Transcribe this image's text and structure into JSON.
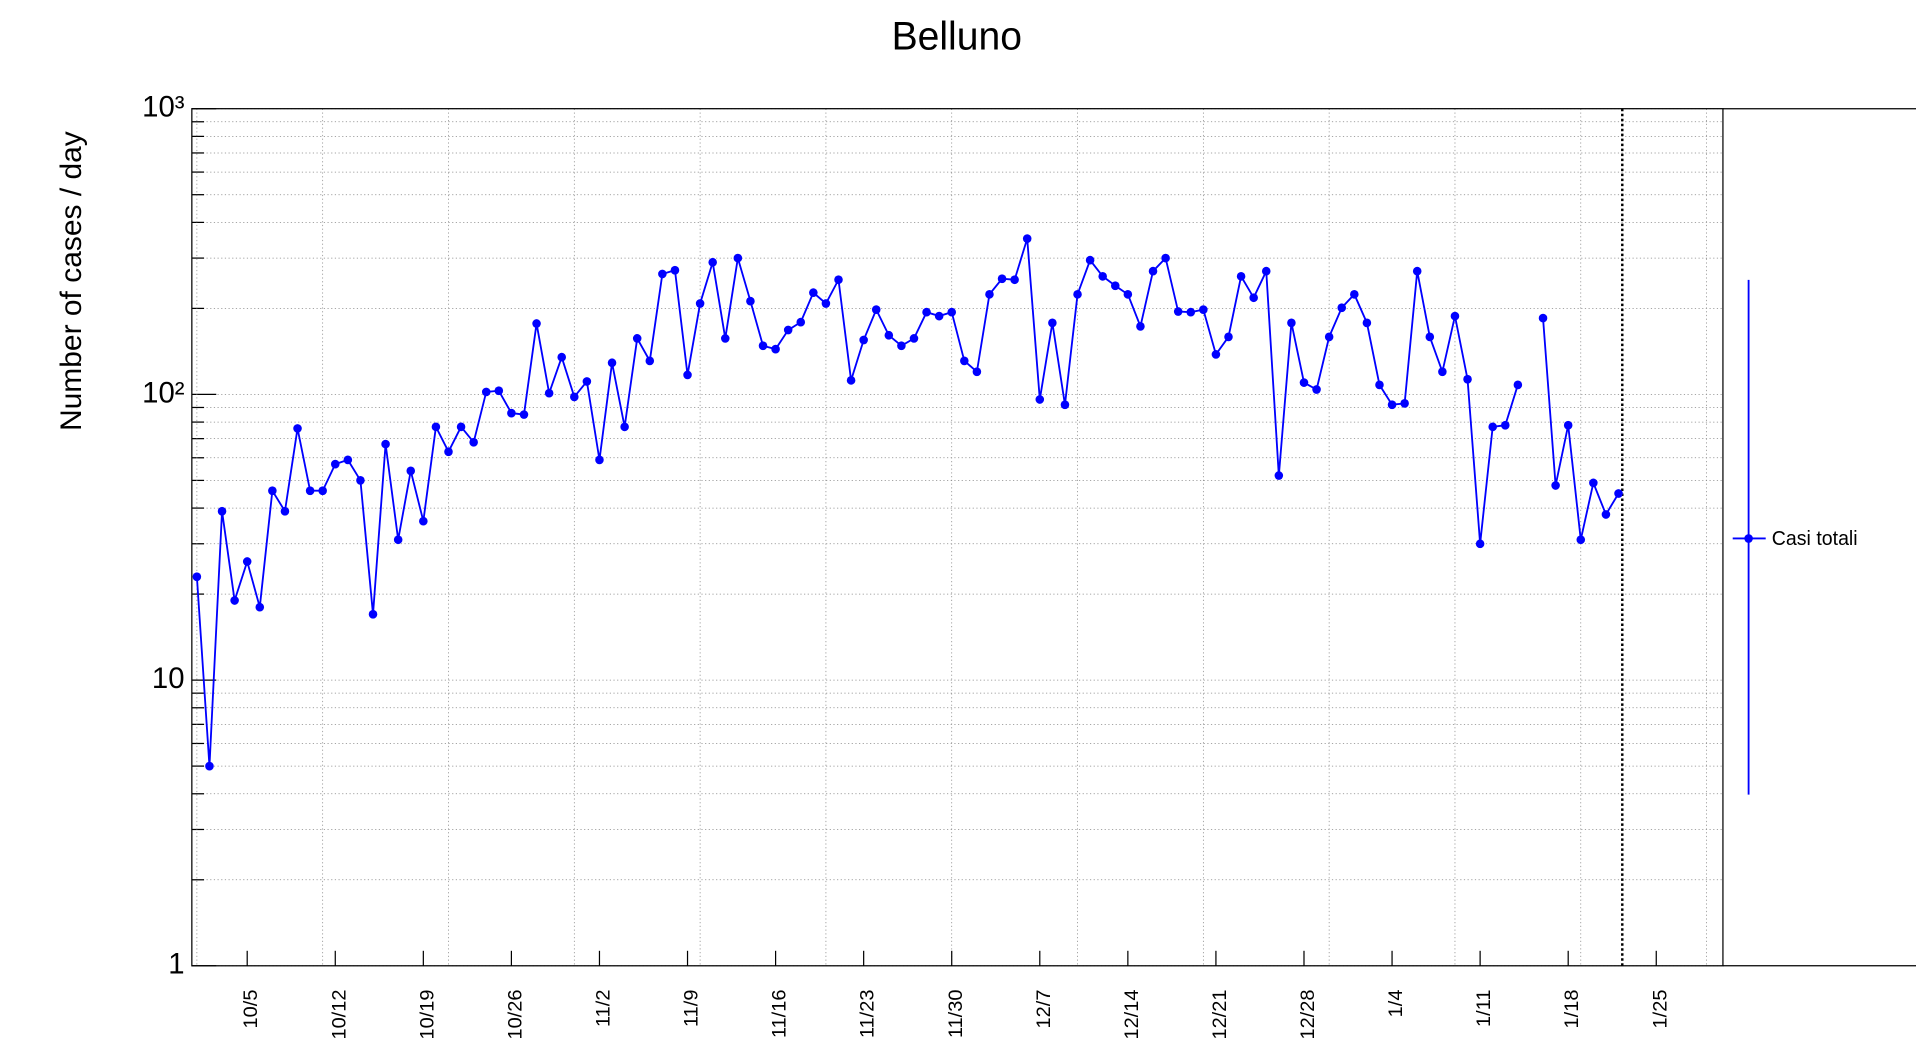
{
  "chart_data": {
    "type": "line",
    "title": "Belluno",
    "y_label": "Number of cases / day",
    "categories": [
      null,
      null,
      null,
      null,
      "10/5",
      null,
      null,
      null,
      null,
      null,
      null,
      "10/12",
      null,
      null,
      null,
      null,
      null,
      null,
      "10/19",
      null,
      null,
      null,
      null,
      null,
      null,
      "10/26",
      null,
      null,
      null,
      null,
      null,
      null,
      "11/2",
      null,
      null,
      null,
      null,
      null,
      null,
      "11/9",
      null,
      null,
      null,
      null,
      null,
      null,
      "11/16",
      null,
      null,
      null,
      null,
      null,
      null,
      "11/23",
      null,
      null,
      null,
      null,
      null,
      null,
      "11/30",
      null,
      null,
      null,
      null,
      null,
      null,
      "12/7",
      null,
      null,
      null,
      null,
      null,
      null,
      "12/14",
      null,
      null,
      null,
      null,
      null,
      null,
      "12/21",
      null,
      null,
      null,
      null,
      null,
      null,
      "12/28",
      null,
      null,
      null,
      null,
      null,
      null,
      "1/4",
      null,
      null,
      null,
      null,
      null,
      null,
      "1/11",
      null,
      null,
      null,
      null,
      null,
      null,
      "1/18",
      null,
      null,
      null,
      null,
      null,
      null,
      "1/25"
    ],
    "series": [
      {
        "name": "Casi totali",
        "color": "#0000ff",
        "values": [
          23,
          5,
          39,
          19,
          26,
          18,
          46,
          39,
          76,
          46,
          46,
          57,
          59,
          50,
          17,
          67,
          31,
          54,
          36,
          77,
          63,
          77,
          68,
          102,
          103,
          86,
          85,
          177,
          101,
          135,
          98,
          111,
          59,
          129,
          77,
          157,
          131,
          264,
          272,
          117,
          208,
          290,
          157,
          300,
          212,
          148,
          144,
          168,
          179,
          227,
          208,
          252,
          112,
          155,
          198,
          161,
          148,
          157,
          194,
          188,
          194,
          131,
          120,
          224,
          254,
          252,
          351,
          96,
          178,
          92,
          224,
          295,
          259,
          240,
          224,
          173,
          270,
          300,
          195,
          194,
          198,
          138,
          159,
          259,
          218,
          270,
          52,
          178,
          110,
          104,
          159,
          201,
          224,
          178,
          108,
          92,
          93,
          270,
          159,
          120,
          188,
          113,
          30,
          77,
          78,
          108,
          null,
          185,
          48,
          78,
          31,
          49,
          38,
          45,
          null,
          null,
          null
        ]
      }
    ],
    "xlim": [
      -0.4,
      121.3
    ],
    "x_grid_step": 10,
    "marker_line_x": 113.3,
    "ylim": [
      1,
      1000
    ],
    "log_y": true,
    "yticks": [
      1,
      10,
      {
        "value": 100,
        "label": "10²"
      },
      {
        "value": 1000,
        "label": "10³"
      }
    ],
    "grid": true,
    "legend": "right"
  }
}
